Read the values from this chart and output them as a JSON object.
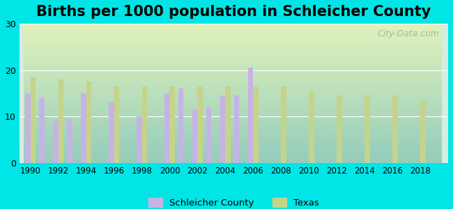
{
  "title": "Births per 1000 population in Schleicher County",
  "title_fontsize": 15,
  "title_fontweight": "bold",
  "background_outer": "#00e5e5",
  "background_inner_top": "#e8f5e9",
  "background_inner_bottom": "#d0f0e0",
  "ylabel": "",
  "xlabel": "",
  "ylim": [
    0,
    30
  ],
  "yticks": [
    0,
    10,
    20,
    30
  ],
  "years": [
    1990,
    1991,
    1992,
    1993,
    1994,
    1995,
    1996,
    1997,
    1998,
    1999,
    2000,
    2001,
    2002,
    2003,
    2004,
    2005,
    2006,
    2007,
    2008,
    2009,
    2010,
    2011,
    2012,
    2013,
    2014,
    2015,
    2016,
    2017,
    2018,
    2019
  ],
  "schleicher": [
    15.0,
    14.0,
    9.0,
    9.5,
    15.0,
    null,
    13.0,
    null,
    10.0,
    null,
    15.0,
    16.0,
    11.5,
    12.0,
    14.5,
    14.5,
    20.5,
    null,
    null,
    null,
    null,
    null,
    null,
    null,
    null,
    null,
    null,
    null,
    null,
    null
  ],
  "texas": [
    18.5,
    null,
    18.0,
    null,
    17.5,
    null,
    16.5,
    null,
    16.5,
    null,
    16.5,
    null,
    16.5,
    null,
    16.5,
    null,
    16.5,
    null,
    16.5,
    null,
    15.5,
    null,
    14.5,
    null,
    14.5,
    null,
    14.5,
    null,
    13.5,
    null
  ],
  "schleicher_color": "#c5b3e6",
  "texas_color": "#c5d48a",
  "bar_width": 0.4,
  "watermark": "City-Data.com"
}
